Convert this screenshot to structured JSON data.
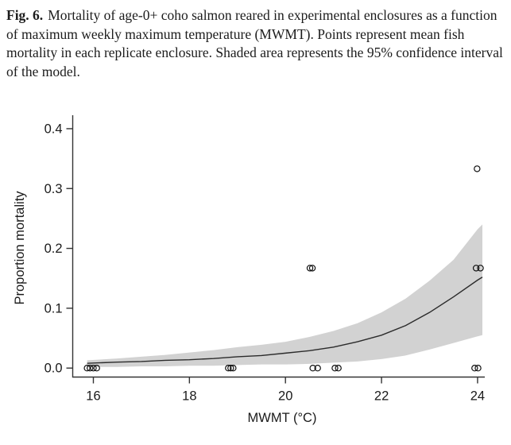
{
  "caption": {
    "label": "Fig. 6.",
    "text": "Mortality of age-0+ coho salmon reared in experimental enclosures as a function of maximum weekly maximum temperature (MWMT). Points represent mean fish mortality in each replicate enclosure. Shaded area represents the 95% confidence interval of the model."
  },
  "chart_data": {
    "type": "scatter",
    "title": "",
    "xlabel": "MWMT (°C)",
    "ylabel": "Proportion mortality",
    "xlim": [
      15.57,
      24.15
    ],
    "ylim": [
      -0.015,
      0.4225
    ],
    "xticks": [
      16,
      18,
      20,
      22,
      24
    ],
    "xtick_labels": [
      "16",
      "18",
      "20",
      "22",
      "24"
    ],
    "yticks": [
      0.0,
      0.1,
      0.2,
      0.3,
      0.4
    ],
    "ytick_labels": [
      "0.0",
      "0.1",
      "0.2",
      "0.3",
      "0.4"
    ],
    "grid": false,
    "legend": "none",
    "marker": "open-circle",
    "colors": {
      "band": "#d2d2d2",
      "curve": "#2b2b2b",
      "points": "#111111",
      "axis": "#333333",
      "text": "#1a1a1a"
    },
    "points": [
      [
        15.87,
        0
      ],
      [
        15.93,
        0
      ],
      [
        16.0,
        0
      ],
      [
        16.07,
        0
      ],
      [
        18.81,
        0
      ],
      [
        18.86,
        0
      ],
      [
        18.91,
        0
      ],
      [
        20.51,
        0.167
      ],
      [
        20.56,
        0.167
      ],
      [
        20.57,
        0
      ],
      [
        20.67,
        0
      ],
      [
        21.03,
        0
      ],
      [
        21.1,
        0
      ],
      [
        23.99,
        0.333
      ],
      [
        23.97,
        0.167
      ],
      [
        24.06,
        0.167
      ],
      [
        23.94,
        0
      ],
      [
        24.01,
        0
      ]
    ],
    "fit_line": {
      "x": [
        15.87,
        16.5,
        17,
        17.5,
        18,
        18.5,
        19,
        19.5,
        20,
        20.5,
        21,
        21.5,
        22,
        22.5,
        23,
        23.5,
        24,
        24.1
      ],
      "y": [
        0.008,
        0.01,
        0.011,
        0.013,
        0.014,
        0.016,
        0.019,
        0.021,
        0.025,
        0.029,
        0.035,
        0.044,
        0.055,
        0.071,
        0.093,
        0.119,
        0.147,
        0.152
      ]
    },
    "confidence_band": {
      "label": "95% confidence interval",
      "x": [
        15.87,
        16.5,
        17,
        17.5,
        18,
        18.5,
        19,
        19.5,
        20,
        20.5,
        21,
        21.5,
        22,
        22.5,
        23,
        23.5,
        24,
        24.1
      ],
      "upper": [
        0.013,
        0.016,
        0.019,
        0.022,
        0.026,
        0.03,
        0.035,
        0.039,
        0.044,
        0.052,
        0.062,
        0.075,
        0.093,
        0.116,
        0.146,
        0.181,
        0.232,
        0.24
      ],
      "lower": [
        0.002,
        0.002,
        0.003,
        0.003,
        0.004,
        0.004,
        0.005,
        0.006,
        0.006,
        0.007,
        0.009,
        0.011,
        0.015,
        0.021,
        0.031,
        0.042,
        0.053,
        0.055
      ]
    }
  }
}
